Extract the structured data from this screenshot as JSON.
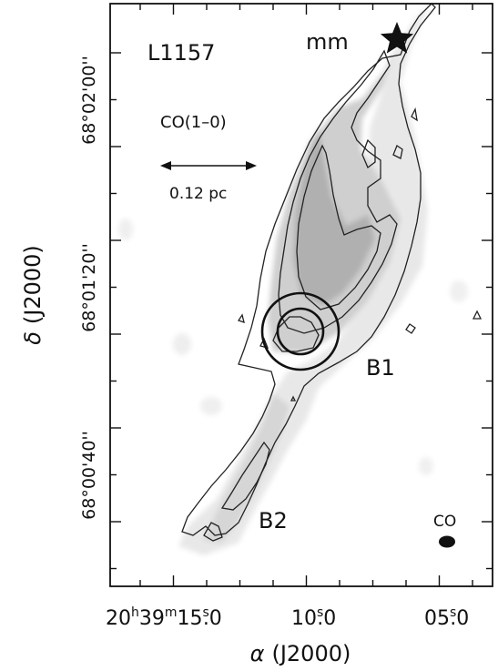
{
  "figure": {
    "region_label": "L1157",
    "molecule_label": "CO(1–0)",
    "scale_bar_label": "0.12 pc",
    "source_label": "mm",
    "knot_labels": [
      "B1",
      "B2"
    ],
    "beam_label": "CO",
    "axes": {
      "xlabel_symbol": "α",
      "xlabel_epoch": "(J2000)",
      "ylabel_symbol": "δ",
      "ylabel_epoch": "(J2000)",
      "x_tick_labels": [
        {
          "main": "20",
          "h": "h",
          "mid1": "39",
          "m": "m",
          "mid2": "15",
          "s": "s",
          "frac": ".0"
        },
        {
          "main": "",
          "h": "",
          "mid1": "",
          "m": "",
          "mid2": "10",
          "s": "s",
          "frac": ".0"
        },
        {
          "main": "",
          "h": "",
          "mid1": "",
          "m": "",
          "mid2": "05",
          "s": "s",
          "frac": ".0"
        }
      ],
      "y_tick_labels": [
        "68°00'40''",
        "68°01'20''",
        "68°02'00''"
      ]
    },
    "colors": {
      "frame": "#111111",
      "emission_light": "#e8e8e8",
      "emission_mid": "#cfcfcf",
      "emission_dark": "#b0b0b0",
      "contour": "#222222"
    }
  }
}
